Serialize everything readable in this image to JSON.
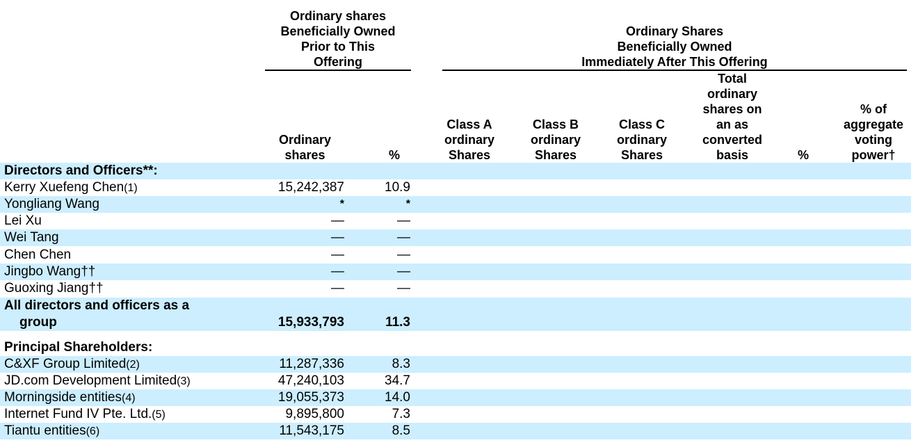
{
  "header": {
    "prior_group": [
      "Ordinary shares",
      "Beneficially Owned",
      "Prior to This",
      "Offering"
    ],
    "after_group": [
      "Ordinary Shares",
      "Beneficially Owned",
      "Immediately After This Offering"
    ],
    "col_ordinary_shares": [
      "Ordinary",
      "shares"
    ],
    "col_pct": "%",
    "col_class_a": [
      "Class A",
      "ordinary",
      "Shares"
    ],
    "col_class_b": [
      "Class B",
      "ordinary",
      "Shares"
    ],
    "col_class_c": [
      "Class C",
      "ordinary",
      "Shares"
    ],
    "col_total": [
      "Total",
      "ordinary",
      "shares on",
      "an as",
      "converted",
      "basis"
    ],
    "col_pct_after": "%",
    "col_voting": [
      "% of",
      "aggregate",
      "voting",
      "power†"
    ]
  },
  "sections": {
    "directors_title": "Directors and Officers**:",
    "principal_title": "Principal Shareholders:"
  },
  "directors": [
    {
      "name": "Kerry Xuefeng Chen",
      "fn": "(1)",
      "shares": "15,242,387",
      "pct": "10.9"
    },
    {
      "name": "Yongliang Wang",
      "fn": "",
      "shares": "*",
      "pct": "*"
    },
    {
      "name": "Lei Xu",
      "fn": "",
      "shares": "—",
      "pct": "—"
    },
    {
      "name": "Wei Tang",
      "fn": "",
      "shares": "—",
      "pct": "—"
    },
    {
      "name": "Chen Chen",
      "fn": "",
      "shares": "—",
      "pct": "—"
    },
    {
      "name": "Jingbo Wang††",
      "fn": "",
      "shares": "—",
      "pct": "—"
    },
    {
      "name": "Guoxing Jiang††",
      "fn": "",
      "shares": "—",
      "pct": "—"
    }
  ],
  "group_total": {
    "line1": "All directors and officers as a",
    "line2": "group",
    "shares": "15,933,793",
    "pct": "11.3"
  },
  "principals": [
    {
      "name": "C&XF Group Limited",
      "fn": "(2)",
      "shares": "11,287,336",
      "pct": "8.3"
    },
    {
      "name": "JD.com Development Limited",
      "fn": "(3)",
      "shares": "47,240,103",
      "pct": "34.7"
    },
    {
      "name": "Morningside entities",
      "fn": "(4)",
      "shares": "19,055,373",
      "pct": "14.0"
    },
    {
      "name": "Internet Fund IV Pte. Ltd.",
      "fn": "(5)",
      "shares": "9,895,800",
      "pct": "7.3"
    },
    {
      "name": "Tiantu entities",
      "fn": "(6)",
      "shares": "11,543,175",
      "pct": "8.5"
    }
  ]
}
